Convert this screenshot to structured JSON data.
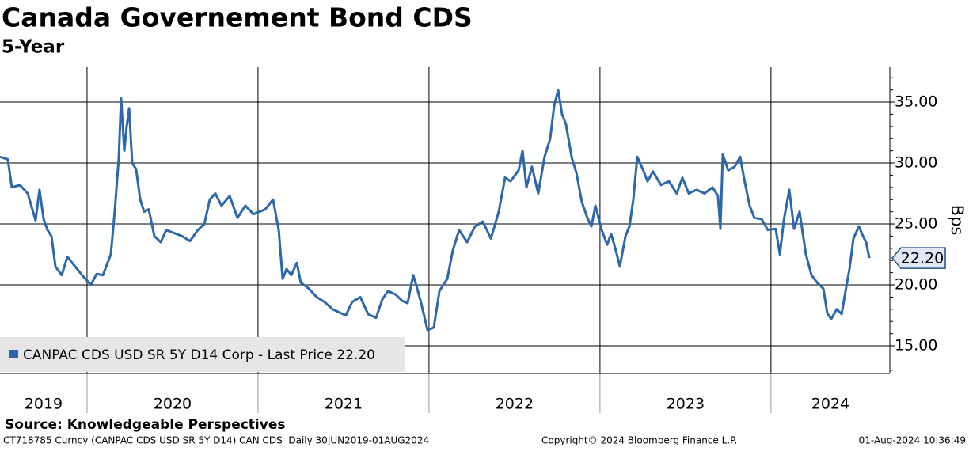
{
  "chart_data": {
    "type": "line",
    "title": "Canada Governement Bond CDS",
    "subtitle": "5-Year",
    "y_axis_label": "Bps",
    "source": "Source: Knowledgeable Perspectives",
    "footer_left": "CT718785 Curncy (CANPAC CDS USD SR 5Y D14) CAN CDS  Daily 30JUN2019-01AUG2024",
    "footer_center": "Copyright© 2024 Bloomberg Finance L.P.",
    "footer_right": "01-Aug-2024 10:36:49",
    "last_value_label": {
      "value": 22.2,
      "label": "22.20"
    },
    "xlim": [
      2019.491,
      2024.695
    ],
    "xticks": [
      2019,
      2020,
      2021,
      2022,
      2023,
      2024
    ],
    "ylim": [
      12.73,
      37.86
    ],
    "yticks": [
      {
        "value": 15,
        "label": "15.00"
      },
      {
        "value": 20,
        "label": "20.00"
      },
      {
        "value": 25,
        "label": "25.00"
      },
      {
        "value": 30,
        "label": "30.00"
      },
      {
        "value": 35,
        "label": "35.00"
      }
    ],
    "grid": true,
    "legend_position": "bottom-left",
    "series": [
      {
        "name": "CANPAC CDS USD SR 5Y D14 Corp - Last Price 22.20",
        "color": "#2c68aa",
        "x": [
          2019.491,
          2019.537,
          2019.56,
          2019.607,
          2019.653,
          2019.699,
          2019.722,
          2019.746,
          2019.769,
          2019.792,
          2019.815,
          2019.852,
          2019.885,
          2019.931,
          2019.977,
          2020.023,
          2020.056,
          2020.093,
          2020.139,
          2020.162,
          2020.186,
          2020.199,
          2020.218,
          2020.232,
          2020.246,
          2020.264,
          2020.287,
          2020.311,
          2020.334,
          2020.361,
          2020.394,
          2020.431,
          2020.463,
          2020.5,
          2020.556,
          2020.602,
          2020.648,
          2020.686,
          2020.718,
          2020.75,
          2020.787,
          2020.834,
          2020.88,
          2020.926,
          2020.973,
          2021.042,
          2021.088,
          2021.121,
          2021.144,
          2021.167,
          2021.195,
          2021.227,
          2021.25,
          2021.297,
          2021.343,
          2021.389,
          2021.436,
          2021.482,
          2021.514,
          2021.551,
          2021.598,
          2021.644,
          2021.69,
          2021.727,
          2021.76,
          2021.806,
          2021.843,
          2021.875,
          2021.908,
          2021.931,
          2021.954,
          2021.991,
          2022.028,
          2022.061,
          2022.107,
          2022.139,
          2022.176,
          2022.223,
          2022.269,
          2022.315,
          2022.362,
          2022.408,
          2022.445,
          2022.477,
          2022.524,
          2022.547,
          2022.57,
          2022.602,
          2022.639,
          2022.676,
          2022.709,
          2022.732,
          2022.755,
          2022.778,
          2022.801,
          2022.834,
          2022.862,
          2022.894,
          2022.926,
          2022.95,
          2022.973,
          2023.01,
          2023.042,
          2023.065,
          2023.093,
          2023.116,
          2023.149,
          2023.172,
          2023.195,
          2023.218,
          2023.25,
          2023.278,
          2023.31,
          2023.357,
          2023.403,
          2023.449,
          2023.482,
          2023.519,
          2023.565,
          2023.611,
          2023.658,
          2023.69,
          2023.704,
          2023.718,
          2023.75,
          2023.787,
          2023.82,
          2023.843,
          2023.875,
          2023.903,
          2023.945,
          2023.982,
          2024.028,
          2024.052,
          2024.075,
          2024.107,
          2024.135,
          2024.167,
          2024.204,
          2024.237,
          2024.269,
          2024.306,
          2024.329,
          2024.352,
          2024.385,
          2024.413,
          2024.436,
          2024.459,
          2024.482,
          2024.514,
          2024.538,
          2024.556,
          2024.575
        ],
        "values": [
          30.5,
          30.3,
          28,
          28.2,
          27.5,
          25.3,
          27.8,
          25.4,
          24.5,
          24,
          21.5,
          20.8,
          22.3,
          21.5,
          20.7,
          20,
          20.9,
          20.8,
          22.5,
          26,
          30.5,
          35.3,
          31,
          33,
          34.5,
          30,
          29.5,
          27,
          26,
          26.2,
          24,
          23.5,
          24.5,
          24.3,
          24,
          23.6,
          24.5,
          25,
          27,
          27.5,
          26.5,
          27.3,
          25.5,
          26.5,
          25.8,
          26.2,
          27,
          24.5,
          20.5,
          21.3,
          20.8,
          21.8,
          20.2,
          19.7,
          19,
          18.6,
          18,
          17.7,
          17.5,
          18.6,
          19,
          17.6,
          17.3,
          18.8,
          19.5,
          19.2,
          18.7,
          18.5,
          20.8,
          19.7,
          18.5,
          16.3,
          16.5,
          19.5,
          20.5,
          22.8,
          24.5,
          23.5,
          24.8,
          25.2,
          23.8,
          26,
          28.8,
          28.5,
          29.4,
          31,
          28,
          29.7,
          27.5,
          30.5,
          32,
          34.7,
          36,
          34,
          33.2,
          30.5,
          29.2,
          26.8,
          25.5,
          24.8,
          26.5,
          24.5,
          23.3,
          24.2,
          22.8,
          21.5,
          24,
          24.8,
          27,
          30.5,
          29.5,
          28.5,
          29.3,
          28.2,
          28.5,
          27.5,
          28.8,
          27.5,
          27.8,
          27.5,
          28,
          27.3,
          24.6,
          30.7,
          29.4,
          29.7,
          30.5,
          28.7,
          26.5,
          25.5,
          25.4,
          24.5,
          24.6,
          22.5,
          25.3,
          27.8,
          24.6,
          26,
          22.5,
          20.8,
          20.2,
          19.7,
          17.7,
          17.2,
          18,
          17.6,
          19.5,
          21.3,
          23.8,
          24.8,
          24,
          23.5,
          22.2
        ]
      }
    ]
  }
}
